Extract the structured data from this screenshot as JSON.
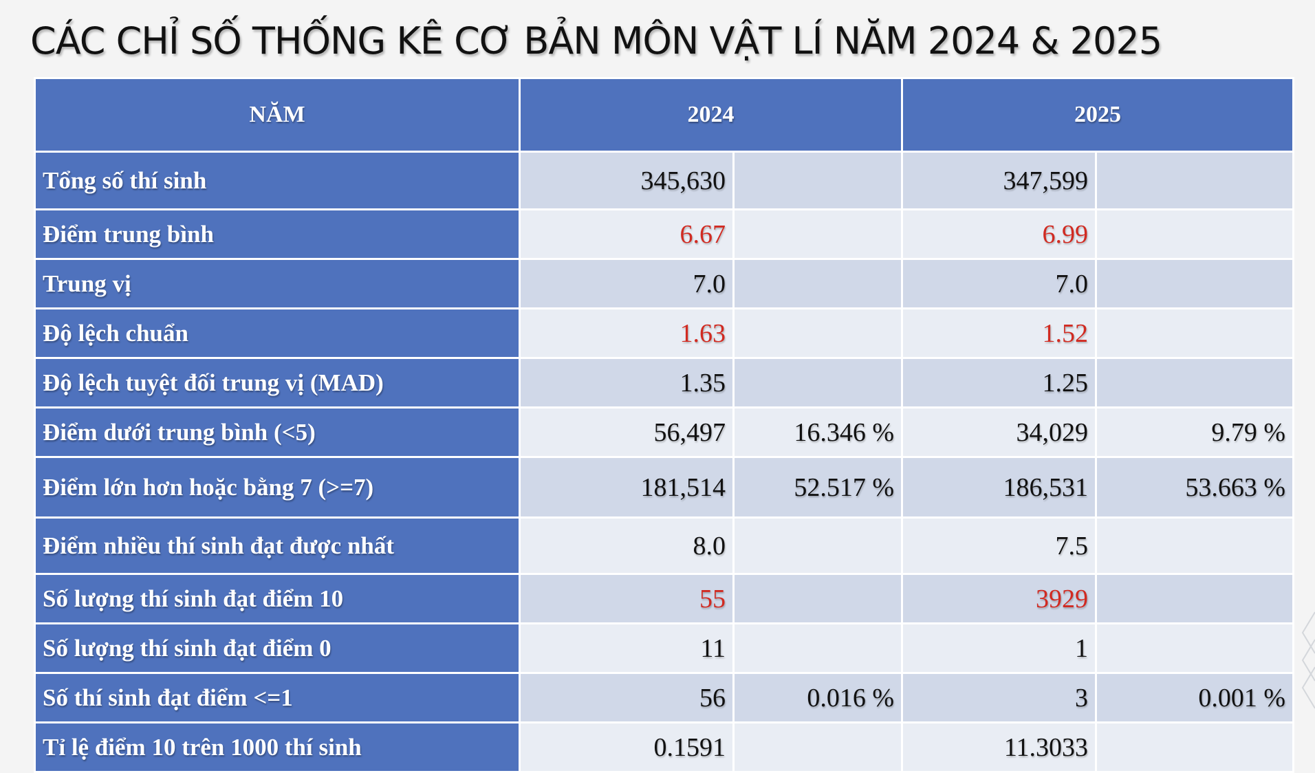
{
  "title": "CÁC CHỈ SỐ THỐNG KÊ CƠ BẢN MÔN VẬT LÍ NĂM 2024 & 2025",
  "table": {
    "headers": [
      "NĂM",
      "2024",
      "2025"
    ],
    "rows": [
      {
        "label": "Tổng số thí sinh",
        "v2024": "345,630",
        "p2024": "",
        "v2025": "347,599",
        "p2025": "",
        "highlight": false
      },
      {
        "label": "Điểm trung bình",
        "v2024": "6.67",
        "p2024": "",
        "v2025": "6.99",
        "p2025": "",
        "highlight": true
      },
      {
        "label": "Trung vị",
        "v2024": "7.0",
        "p2024": "",
        "v2025": "7.0",
        "p2025": "",
        "highlight": false
      },
      {
        "label": "Độ lệch chuẩn",
        "v2024": "1.63",
        "p2024": "",
        "v2025": "1.52",
        "p2025": "",
        "highlight": true
      },
      {
        "label": "Độ lệch tuyệt đối trung vị (MAD)",
        "v2024": "1.35",
        "p2024": "",
        "v2025": "1.25",
        "p2025": "",
        "highlight": false
      },
      {
        "label": "Điểm dưới trung bình (<5)",
        "v2024": "56,497",
        "p2024": "16.346 %",
        "v2025": "34,029",
        "p2025": "9.79 %",
        "highlight": false
      },
      {
        "label": "Điểm lớn hơn hoặc bằng 7 (>=7)",
        "v2024": "181,514",
        "p2024": "52.517 %",
        "v2025": "186,531",
        "p2025": "53.663 %",
        "highlight": false
      },
      {
        "label": "Điểm nhiều thí sinh đạt được nhất",
        "v2024": "8.0",
        "p2024": "",
        "v2025": "7.5",
        "p2025": "",
        "highlight": false
      },
      {
        "label": "Số lượng thí sinh đạt điểm 10",
        "v2024": "55",
        "p2024": "",
        "v2025": "3929",
        "p2025": "",
        "highlight": true
      },
      {
        "label": "Số lượng thí sinh đạt điểm 0",
        "v2024": "11",
        "p2024": "",
        "v2025": "1",
        "p2025": "",
        "highlight": false
      },
      {
        "label": "Số thí sinh đạt điểm <=1",
        "v2024": "56",
        "p2024": "0.016 %",
        "v2025": "3",
        "p2025": "0.001 %",
        "highlight": false
      },
      {
        "label": "Tỉ lệ điểm 10 trên 1000 thí sinh",
        "v2024": "0.1591",
        "p2024": "",
        "v2025": "11.3033",
        "p2025": "",
        "highlight": false
      }
    ]
  },
  "colors": {
    "header_bg": "#4f72bd",
    "row_odd": "#d0d8e8",
    "row_even": "#e9edf4",
    "highlight_text": "#d12a21"
  }
}
